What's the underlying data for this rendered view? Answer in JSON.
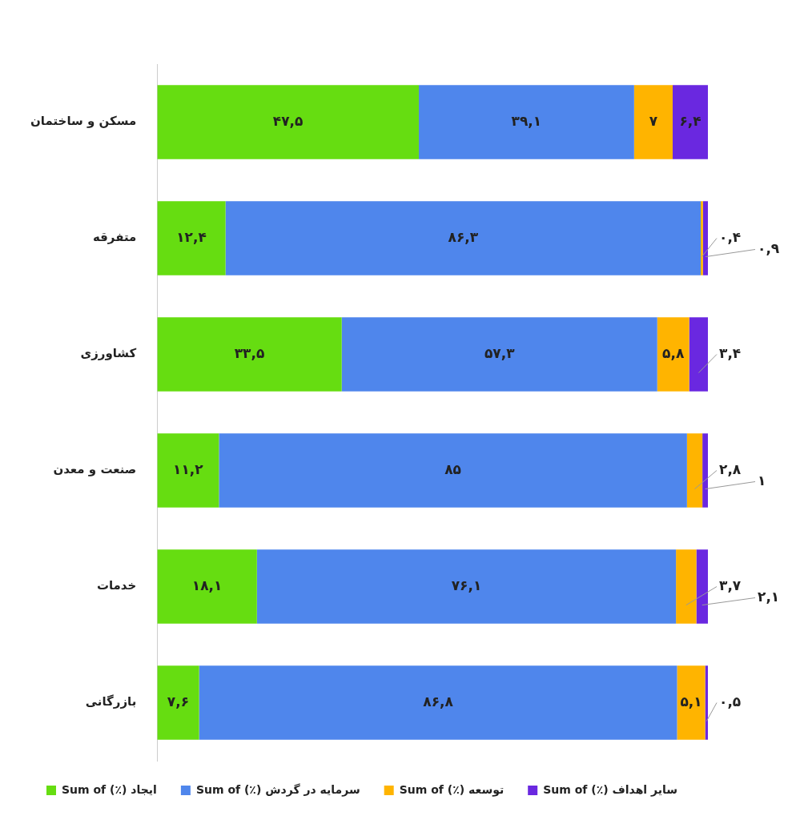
{
  "chart_data": {
    "type": "bar",
    "orientation": "horizontal",
    "stacked": true,
    "data_labels": true,
    "legend": "bottom",
    "categories": [
      "مسکن و ساختمان",
      "متفرقه",
      "کشاورزی",
      "صنعت و معدن",
      "خدمات",
      "بازرگانی"
    ],
    "series": [
      {
        "name": "Sum of (٪) ایجاد",
        "color": "#66dd11",
        "values": [
          47.5,
          12.4,
          33.5,
          11.2,
          18.1,
          7.6
        ],
        "value_labels": [
          "۴۷,۵",
          "۱۲,۴",
          "۳۳,۵",
          "۱۱,۲",
          "۱۸,۱",
          "۷,۶"
        ]
      },
      {
        "name": "Sum of (٪) سرمایه در گردش",
        "color": "#4f86ec",
        "values": [
          39.1,
          86.3,
          57.3,
          85,
          76.1,
          86.8
        ],
        "value_labels": [
          "۳۹,۱",
          "۸۶,۳",
          "۵۷,۳",
          "۸۵",
          "۷۶,۱",
          "۸۶,۸"
        ]
      },
      {
        "name": "Sum of (٪) توسعه",
        "color": "#ffb400",
        "values": [
          7,
          0.4,
          5.8,
          2.8,
          3.7,
          5.1
        ],
        "value_labels": [
          "۷",
          "۰,۴",
          "۵,۸",
          "۲,۸",
          "۳,۷",
          "۵,۱"
        ]
      },
      {
        "name": "Sum of (٪) سایر اهداف",
        "color": "#6a28e0",
        "values": [
          6.4,
          0.9,
          3.4,
          1,
          2.1,
          0.5
        ],
        "value_labels": [
          "۶,۴",
          "۰,۹",
          "۳,۴",
          "۱",
          "۲,۱",
          "۰,۵"
        ]
      }
    ]
  }
}
